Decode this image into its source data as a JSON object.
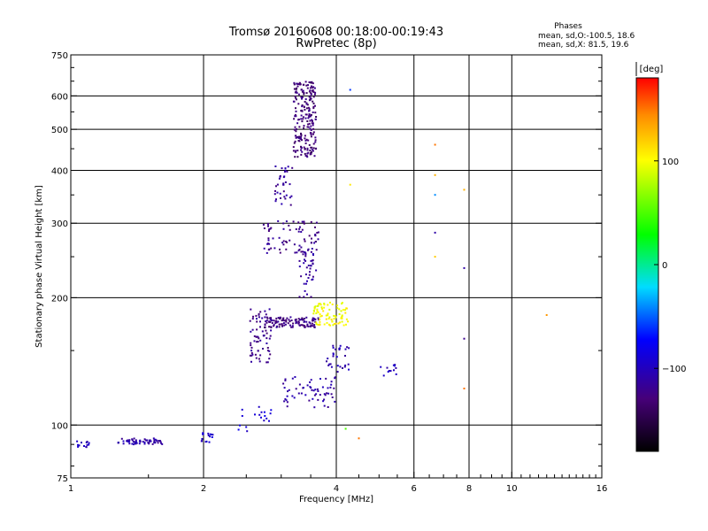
{
  "chart_data": {
    "type": "scatter",
    "title": "Tromsø 20160608 00:18:00-00:19:43",
    "subtitle": "RwPretec (8p)",
    "phases": {
      "heading": "Phases",
      "line_o": "mean, sd,O:-100.5, 18.6",
      "line_x": "mean, sd,X:  81.5, 19.6"
    },
    "xlabel": "Frequency [MHz]",
    "ylabel": "Stationary phase Virtual Height [km]",
    "x_scale": "log",
    "y_scale": "log",
    "xlim": [
      1,
      16
    ],
    "ylim": [
      75,
      750
    ],
    "x_ticks": [
      1,
      2,
      4,
      6,
      8,
      10,
      16
    ],
    "x_tick_labels": [
      "1",
      "2",
      "4",
      "6",
      "8",
      "10",
      "16"
    ],
    "x_gridlines": [
      2,
      4,
      6,
      8,
      10
    ],
    "y_ticks": [
      75,
      100,
      200,
      300,
      400,
      500,
      600,
      750
    ],
    "y_tick_labels": [
      "75",
      "100",
      "200",
      "300",
      "400",
      "500",
      "600",
      "750"
    ],
    "y_gridlines": [
      100,
      200,
      300,
      400,
      500,
      600
    ],
    "colorbar": {
      "label": "[deg]",
      "range": [
        -180,
        180
      ],
      "ticks": [
        100,
        0,
        -100
      ],
      "tick_labels": [
        "100",
        "0",
        "−100"
      ]
    },
    "series": [
      {
        "phase": -100,
        "x_range": [
          1.02,
          1.1
        ],
        "y_range": [
          88,
          92
        ],
        "count": 14
      },
      {
        "phase": -110,
        "x_range": [
          1.28,
          1.62
        ],
        "y_range": [
          90,
          93
        ],
        "count": 60
      },
      {
        "phase": -95,
        "x_range": [
          1.95,
          2.1
        ],
        "y_range": [
          91,
          96
        ],
        "count": 16
      },
      {
        "phase": -90,
        "x_range": [
          2.4,
          2.85
        ],
        "y_range": [
          96,
          112
        ],
        "count": 18
      },
      {
        "phase": -120,
        "x_range": [
          2.55,
          2.85
        ],
        "y_range": [
          140,
          190
        ],
        "count": 70
      },
      {
        "phase": -125,
        "x_range": [
          2.75,
          3.65
        ],
        "y_range": [
          170,
          180
        ],
        "count": 110
      },
      {
        "phase": -110,
        "x_range": [
          3.0,
          4.0
        ],
        "y_range": [
          110,
          130
        ],
        "count": 60
      },
      {
        "phase": -105,
        "x_range": [
          3.8,
          4.3
        ],
        "y_range": [
          128,
          155
        ],
        "count": 30
      },
      {
        "phase": 100,
        "x_range": [
          3.55,
          4.25
        ],
        "y_range": [
          172,
          195
        ],
        "count": 80
      },
      {
        "phase": -115,
        "x_range": [
          3.3,
          3.6
        ],
        "y_range": [
          200,
          260
        ],
        "count": 40
      },
      {
        "phase": -120,
        "x_range": [
          2.7,
          3.65
        ],
        "y_range": [
          255,
          305
        ],
        "count": 80
      },
      {
        "phase": -115,
        "x_range": [
          2.9,
          3.2
        ],
        "y_range": [
          330,
          410
        ],
        "count": 35
      },
      {
        "phase": -130,
        "x_range": [
          3.2,
          3.6
        ],
        "y_range": [
          430,
          650
        ],
        "count": 220
      },
      {
        "phase": -100,
        "x_range": [
          5.0,
          5.5
        ],
        "y_range": [
          130,
          140
        ],
        "count": 12
      }
    ],
    "isolated_points": [
      {
        "x": 6.7,
        "y": 460,
        "phase": 150
      },
      {
        "x": 6.7,
        "y": 390,
        "phase": 130
      },
      {
        "x": 6.7,
        "y": 350,
        "phase": -40
      },
      {
        "x": 6.7,
        "y": 285,
        "phase": -110
      },
      {
        "x": 6.7,
        "y": 250,
        "phase": 120
      },
      {
        "x": 7.8,
        "y": 360,
        "phase": 130
      },
      {
        "x": 7.8,
        "y": 235,
        "phase": -110
      },
      {
        "x": 7.8,
        "y": 160,
        "phase": -120
      },
      {
        "x": 7.8,
        "y": 122,
        "phase": 150
      },
      {
        "x": 12.0,
        "y": 182,
        "phase": 140
      },
      {
        "x": 4.3,
        "y": 370,
        "phase": 110
      },
      {
        "x": 4.3,
        "y": 620,
        "phase": -60
      },
      {
        "x": 4.2,
        "y": 98,
        "phase": 50
      },
      {
        "x": 4.5,
        "y": 93,
        "phase": 150
      }
    ]
  }
}
